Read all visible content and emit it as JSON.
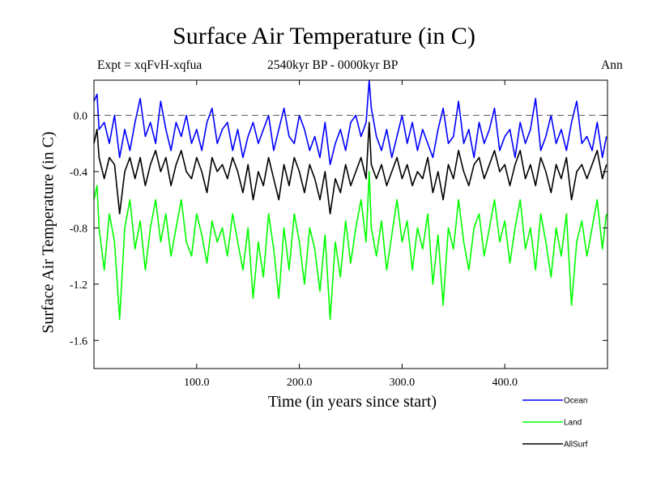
{
  "header": {
    "title": "Surface Air Temperature (in C)",
    "expt": "Expt = xqFvH-xqfua",
    "period": "2540kyr BP - 0000kyr BP",
    "season": "Ann"
  },
  "chart_data": {
    "type": "line",
    "title": "Surface Air Temperature (in C)",
    "xlabel": "Time (in years since start)",
    "ylabel": "Surface Air Temperature (in C)",
    "xlim": [
      0,
      500
    ],
    "ylim": [
      -1.8,
      0.25
    ],
    "xticks": [
      100,
      200,
      300,
      400
    ],
    "xtick_labels": [
      "100.0",
      "200.0",
      "300.0",
      "400.0"
    ],
    "yticks": [
      0.0,
      -0.4,
      -0.8,
      -1.2,
      -1.6
    ],
    "ytick_labels": [
      "0.0",
      "-0.4",
      "-0.8",
      "-1.2",
      "-1.6"
    ],
    "reference_line": {
      "y": 0.0,
      "style": "dashed"
    },
    "legend_position": "bottom-right",
    "series": [
      {
        "name": "Ocean",
        "color": "#0000ff",
        "x": [
          0,
          3,
          5,
          10,
          15,
          20,
          25,
          30,
          35,
          40,
          45,
          50,
          55,
          60,
          65,
          70,
          75,
          80,
          85,
          90,
          95,
          100,
          105,
          110,
          115,
          120,
          125,
          130,
          135,
          140,
          145,
          150,
          155,
          160,
          165,
          170,
          175,
          180,
          185,
          190,
          195,
          200,
          205,
          210,
          215,
          220,
          225,
          230,
          235,
          240,
          245,
          250,
          255,
          260,
          265,
          268,
          270,
          275,
          280,
          285,
          290,
          295,
          300,
          305,
          310,
          315,
          320,
          325,
          330,
          335,
          340,
          345,
          350,
          355,
          360,
          365,
          370,
          375,
          380,
          385,
          390,
          395,
          400,
          405,
          410,
          415,
          420,
          425,
          430,
          435,
          440,
          445,
          450,
          455,
          460,
          465,
          470,
          475,
          480,
          485,
          490,
          495,
          499
        ],
        "y": [
          0.1,
          0.15,
          -0.1,
          -0.05,
          -0.2,
          0.0,
          -0.3,
          -0.1,
          -0.25,
          -0.05,
          0.12,
          -0.15,
          -0.05,
          -0.2,
          0.1,
          -0.1,
          -0.25,
          -0.05,
          -0.15,
          0.0,
          -0.2,
          -0.1,
          -0.25,
          -0.05,
          0.05,
          -0.2,
          -0.1,
          -0.05,
          -0.25,
          -0.1,
          -0.3,
          -0.15,
          -0.05,
          -0.2,
          -0.1,
          0.0,
          -0.25,
          -0.1,
          0.05,
          -0.15,
          -0.2,
          0.0,
          -0.1,
          -0.25,
          -0.15,
          -0.3,
          -0.05,
          -0.35,
          -0.2,
          -0.1,
          -0.25,
          -0.05,
          0.0,
          -0.15,
          -0.05,
          0.25,
          0.05,
          -0.15,
          -0.25,
          -0.1,
          -0.3,
          -0.15,
          0.0,
          -0.2,
          -0.05,
          -0.25,
          -0.1,
          -0.2,
          -0.3,
          -0.1,
          0.05,
          -0.2,
          -0.15,
          0.1,
          -0.2,
          -0.1,
          -0.3,
          -0.05,
          -0.2,
          -0.1,
          0.05,
          -0.25,
          -0.15,
          -0.1,
          -0.3,
          -0.05,
          -0.2,
          -0.1,
          0.12,
          -0.25,
          -0.15,
          0.0,
          -0.2,
          -0.1,
          -0.25,
          -0.05,
          0.1,
          -0.2,
          -0.15,
          -0.25,
          -0.05,
          -0.3,
          -0.15
        ]
      },
      {
        "name": "Land",
        "color": "#00ff00",
        "x": [
          0,
          3,
          5,
          10,
          15,
          20,
          25,
          30,
          35,
          40,
          45,
          50,
          55,
          60,
          65,
          70,
          75,
          80,
          85,
          90,
          95,
          100,
          105,
          110,
          115,
          120,
          125,
          130,
          135,
          140,
          145,
          150,
          155,
          160,
          165,
          170,
          175,
          180,
          185,
          190,
          195,
          200,
          205,
          210,
          215,
          220,
          225,
          230,
          235,
          240,
          245,
          250,
          255,
          260,
          265,
          268,
          270,
          275,
          280,
          285,
          290,
          295,
          300,
          305,
          310,
          315,
          320,
          325,
          330,
          335,
          340,
          345,
          350,
          355,
          360,
          365,
          370,
          375,
          380,
          385,
          390,
          395,
          400,
          405,
          410,
          415,
          420,
          425,
          430,
          435,
          440,
          445,
          450,
          455,
          460,
          465,
          470,
          475,
          480,
          485,
          490,
          495,
          499
        ],
        "y": [
          -0.6,
          -0.5,
          -0.8,
          -1.1,
          -0.7,
          -0.9,
          -1.45,
          -0.8,
          -0.6,
          -0.95,
          -0.75,
          -1.1,
          -0.8,
          -0.6,
          -0.9,
          -0.7,
          -1.0,
          -0.8,
          -0.6,
          -0.9,
          -1.0,
          -0.7,
          -0.85,
          -1.05,
          -0.75,
          -0.9,
          -0.8,
          -1.0,
          -0.7,
          -0.9,
          -1.1,
          -0.8,
          -1.3,
          -0.9,
          -1.15,
          -0.7,
          -0.95,
          -1.3,
          -0.8,
          -1.1,
          -0.7,
          -0.9,
          -1.2,
          -0.8,
          -0.95,
          -1.25,
          -0.85,
          -1.45,
          -0.9,
          -1.15,
          -0.75,
          -1.05,
          -0.8,
          -0.6,
          -0.9,
          -0.4,
          -0.8,
          -1.0,
          -0.75,
          -1.1,
          -0.85,
          -0.6,
          -0.9,
          -0.75,
          -1.1,
          -0.8,
          -0.95,
          -0.7,
          -1.2,
          -0.85,
          -1.35,
          -0.8,
          -0.95,
          -0.6,
          -0.9,
          -1.1,
          -0.8,
          -0.7,
          -1.0,
          -0.8,
          -0.6,
          -0.9,
          -0.75,
          -1.05,
          -0.8,
          -0.6,
          -0.95,
          -0.8,
          -1.1,
          -0.7,
          -0.9,
          -1.15,
          -0.8,
          -1.0,
          -0.7,
          -1.35,
          -0.9,
          -0.75,
          -1.0,
          -0.8,
          -0.6,
          -0.95,
          -0.7
        ]
      },
      {
        "name": "AllSurf",
        "color": "#000000",
        "x": [
          0,
          3,
          5,
          10,
          15,
          20,
          25,
          30,
          35,
          40,
          45,
          50,
          55,
          60,
          65,
          70,
          75,
          80,
          85,
          90,
          95,
          100,
          105,
          110,
          115,
          120,
          125,
          130,
          135,
          140,
          145,
          150,
          155,
          160,
          165,
          170,
          175,
          180,
          185,
          190,
          195,
          200,
          205,
          210,
          215,
          220,
          225,
          230,
          235,
          240,
          245,
          250,
          255,
          260,
          265,
          268,
          270,
          275,
          280,
          285,
          290,
          295,
          300,
          305,
          310,
          315,
          320,
          325,
          330,
          335,
          340,
          345,
          350,
          355,
          360,
          365,
          370,
          375,
          380,
          385,
          390,
          395,
          400,
          405,
          410,
          415,
          420,
          425,
          430,
          435,
          440,
          445,
          450,
          455,
          460,
          465,
          470,
          475,
          480,
          485,
          490,
          495,
          499
        ],
        "y": [
          -0.2,
          -0.1,
          -0.3,
          -0.45,
          -0.3,
          -0.35,
          -0.7,
          -0.4,
          -0.3,
          -0.45,
          -0.3,
          -0.5,
          -0.35,
          -0.25,
          -0.4,
          -0.3,
          -0.5,
          -0.35,
          -0.25,
          -0.4,
          -0.45,
          -0.3,
          -0.4,
          -0.55,
          -0.3,
          -0.4,
          -0.35,
          -0.45,
          -0.3,
          -0.4,
          -0.55,
          -0.35,
          -0.6,
          -0.4,
          -0.5,
          -0.3,
          -0.45,
          -0.6,
          -0.35,
          -0.5,
          -0.3,
          -0.4,
          -0.55,
          -0.35,
          -0.45,
          -0.6,
          -0.4,
          -0.7,
          -0.45,
          -0.55,
          -0.35,
          -0.5,
          -0.4,
          -0.3,
          -0.45,
          -0.05,
          -0.35,
          -0.45,
          -0.35,
          -0.5,
          -0.4,
          -0.3,
          -0.45,
          -0.35,
          -0.5,
          -0.4,
          -0.45,
          -0.3,
          -0.55,
          -0.4,
          -0.6,
          -0.35,
          -0.45,
          -0.25,
          -0.4,
          -0.5,
          -0.35,
          -0.3,
          -0.45,
          -0.35,
          -0.25,
          -0.4,
          -0.35,
          -0.5,
          -0.35,
          -0.25,
          -0.45,
          -0.35,
          -0.5,
          -0.3,
          -0.4,
          -0.55,
          -0.35,
          -0.45,
          -0.3,
          -0.6,
          -0.4,
          -0.35,
          -0.45,
          -0.35,
          -0.25,
          -0.45,
          -0.35
        ]
      }
    ]
  }
}
